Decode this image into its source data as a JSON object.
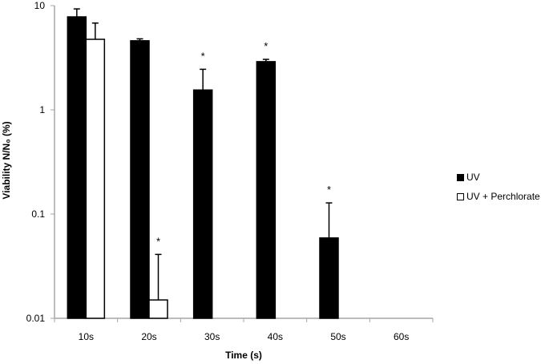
{
  "chart_data": {
    "type": "bar",
    "title": "",
    "xlabel": "Time (s)",
    "ylabel": "Viability N/N₀ (%)",
    "yscale": "log",
    "ylim": [
      0.01,
      10
    ],
    "yticks": [
      0.01,
      0.1,
      1,
      10
    ],
    "ytick_labels": [
      "0.01",
      "0.1",
      "1",
      "10"
    ],
    "grid": false,
    "legend_position": "right",
    "categories": [
      "10s",
      "20s",
      "30s",
      "40s",
      "50s",
      "60s"
    ],
    "series": [
      {
        "name": "UV",
        "color": "#000000",
        "fill": "solid",
        "values": [
          7.8,
          4.6,
          1.55,
          2.9,
          0.059,
          null
        ],
        "error_upper": [
          9.3,
          4.8,
          2.45,
          3.05,
          0.128,
          null
        ],
        "significance": [
          "",
          "",
          "*",
          "*",
          "*",
          ""
        ]
      },
      {
        "name": "UV + Perchlorate",
        "color": "#ffffff",
        "fill": "hollow",
        "values": [
          4.75,
          0.015,
          null,
          null,
          null,
          null
        ],
        "error_upper": [
          6.8,
          0.041,
          null,
          null,
          null,
          null
        ],
        "significance": [
          "",
          "*",
          "",
          "",
          "",
          ""
        ]
      }
    ]
  },
  "legend": {
    "items": [
      {
        "label": "UV",
        "color": "#000000"
      },
      {
        "label": "UV + Perchlorate",
        "color": "#ffffff"
      }
    ]
  },
  "colors": {
    "axis": "#a6a6a6",
    "bar_dark": "#000000",
    "bar_light": "#ffffff"
  }
}
